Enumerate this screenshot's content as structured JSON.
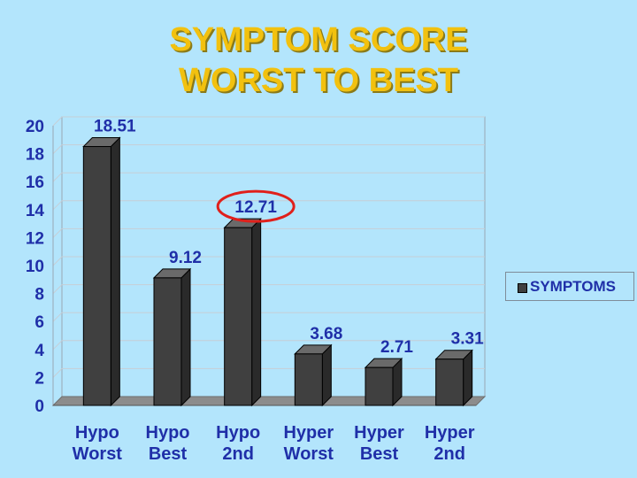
{
  "title_lines": [
    "SYMPTOM SCORE",
    "WORST TO BEST"
  ],
  "colors": {
    "background": "#b3e5fc",
    "title": "#f2c10f",
    "bar": "#404040",
    "text": "#1f2fa8",
    "highlight": "#e0201b"
  },
  "chart_data": {
    "type": "bar",
    "title": "SYMPTOM SCORE WORST TO BEST",
    "categories": [
      [
        "Hypo",
        "Worst"
      ],
      [
        "Hypo",
        "Best"
      ],
      [
        "Hypo",
        "2nd"
      ],
      [
        "Hyper",
        "Worst"
      ],
      [
        "Hyper",
        "Best"
      ],
      [
        "Hyper",
        "2nd"
      ]
    ],
    "series": [
      {
        "name": "SYMPTOMS",
        "values": [
          18.51,
          9.12,
          12.71,
          3.68,
          2.71,
          3.31
        ]
      }
    ],
    "data_labels": [
      "18.51",
      "9.12",
      "12.71",
      "3.68",
      "2.71",
      "3.31"
    ],
    "y_ticks": [
      "0",
      "2",
      "4",
      "6",
      "8",
      "10",
      "12",
      "14",
      "16",
      "18",
      "20"
    ],
    "ylim": [
      0,
      20
    ],
    "grid": true,
    "legend": "right",
    "highlighted_category_index": 2
  }
}
